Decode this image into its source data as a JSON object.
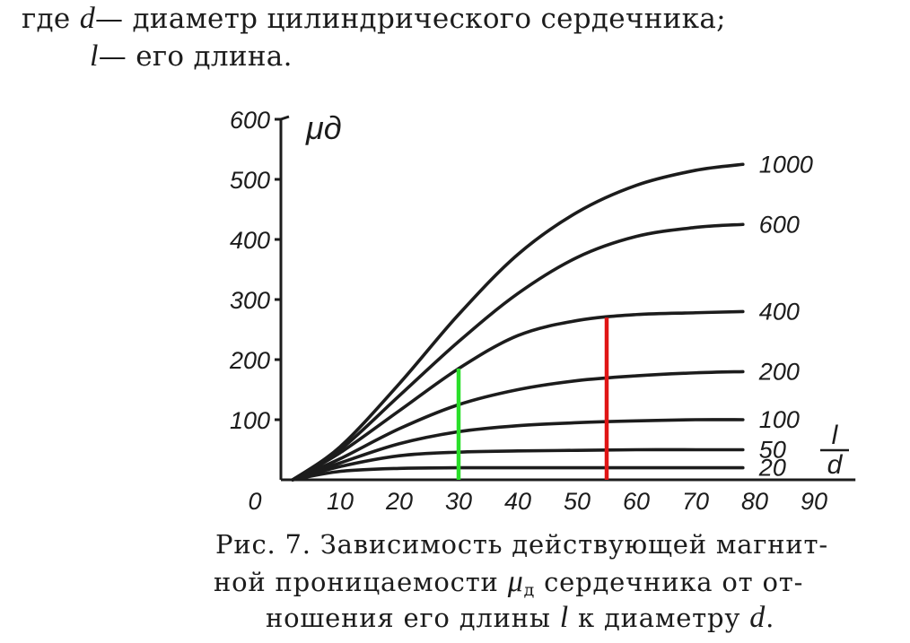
{
  "intro": {
    "line1_prefix": "где",
    "d_symbol": "d",
    "line1_text": "— диаметр цилиндрического сердечника;",
    "l_symbol": "l",
    "line2_text": "— его длина."
  },
  "chart_data": {
    "type": "line",
    "ylabel": "μд",
    "xlabel_numerator": "l",
    "xlabel_denominator": "d",
    "xlim": [
      0,
      95
    ],
    "ylim": [
      0,
      600
    ],
    "x_ticks": [
      0,
      10,
      20,
      30,
      40,
      50,
      60,
      70,
      80,
      90
    ],
    "y_ticks": [
      100,
      200,
      300,
      400,
      500,
      600
    ],
    "series": [
      {
        "name": "1000",
        "x": [
          2,
          10,
          20,
          30,
          40,
          50,
          60,
          70,
          78
        ],
        "values": [
          0,
          55,
          160,
          275,
          375,
          445,
          490,
          515,
          525
        ]
      },
      {
        "name": "600",
        "x": [
          2,
          10,
          20,
          30,
          40,
          50,
          60,
          70,
          78
        ],
        "values": [
          0,
          50,
          140,
          230,
          310,
          370,
          405,
          420,
          425
        ]
      },
      {
        "name": "400",
        "x": [
          2,
          10,
          20,
          30,
          40,
          50,
          60,
          70,
          78
        ],
        "values": [
          0,
          45,
          115,
          185,
          240,
          265,
          275,
          278,
          280
        ]
      },
      {
        "name": "200",
        "x": [
          2,
          10,
          20,
          30,
          40,
          50,
          60,
          70,
          78
        ],
        "values": [
          0,
          35,
          85,
          125,
          150,
          165,
          173,
          178,
          180
        ]
      },
      {
        "name": "100",
        "x": [
          2,
          10,
          20,
          30,
          40,
          50,
          60,
          70,
          78
        ],
        "values": [
          0,
          28,
          60,
          80,
          90,
          95,
          98,
          100,
          100
        ]
      },
      {
        "name": "50",
        "x": [
          2,
          10,
          20,
          30,
          40,
          50,
          60,
          70,
          78
        ],
        "values": [
          0,
          22,
          40,
          46,
          48,
          49,
          50,
          50,
          50
        ]
      },
      {
        "name": "20",
        "x": [
          2,
          10,
          20,
          30,
          40,
          50,
          60,
          70,
          78
        ],
        "values": [
          0,
          14,
          19,
          20,
          20,
          20,
          20,
          20,
          20
        ]
      }
    ],
    "markers": [
      {
        "x": 30,
        "y": 185,
        "color": "#2adf2a"
      },
      {
        "x": 55,
        "y": 270,
        "color": "#e01515"
      }
    ]
  },
  "caption": {
    "line1": "Рис. 7. Зависимость  действующей магнит-",
    "line2_pre": "ной проницаемости",
    "mu_symbol": "μ",
    "mu_subscript": "д",
    "line2_post": "сердечника от от-",
    "line3_pre": "ношения его длины",
    "l_symbol": "l",
    "line3_mid": "к диаметру",
    "d_symbol": "d",
    "line3_end": "."
  }
}
